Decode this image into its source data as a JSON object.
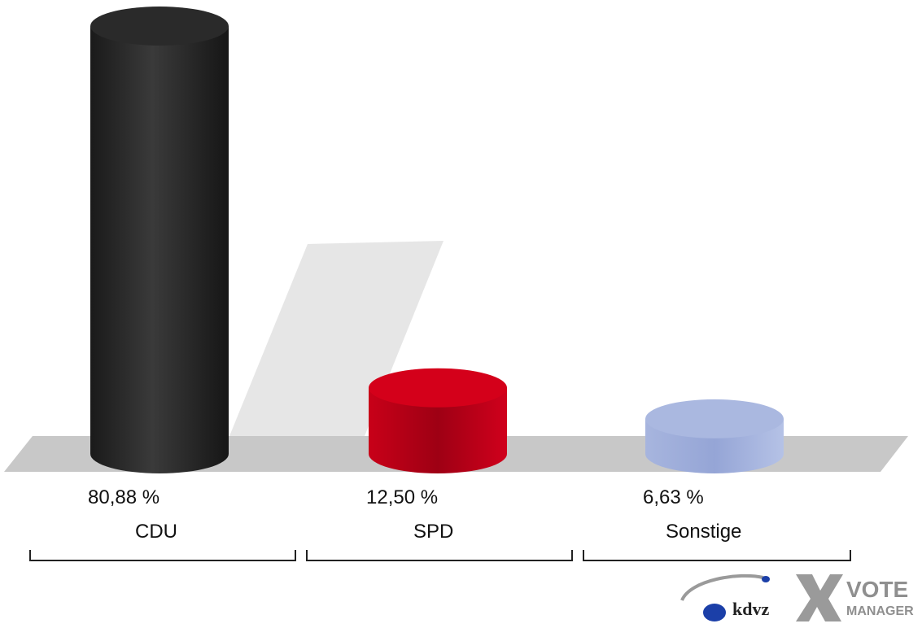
{
  "chart_data": {
    "type": "bar",
    "categories": [
      "CDU",
      "SPD",
      "Sonstige"
    ],
    "values": [
      80.88,
      12.5,
      6.63
    ],
    "value_labels": [
      "80,88 %",
      "12,50 %",
      "6,63 %"
    ],
    "colors": [
      "#2a2a2a",
      "#d4001a",
      "#aab8e0"
    ],
    "ylim": [
      0,
      85
    ],
    "grid": false,
    "legend": "none"
  },
  "branding": {
    "logo_kdvz": "kdvz",
    "logo_vote": "VOTE",
    "logo_manager": "MANAGER"
  }
}
